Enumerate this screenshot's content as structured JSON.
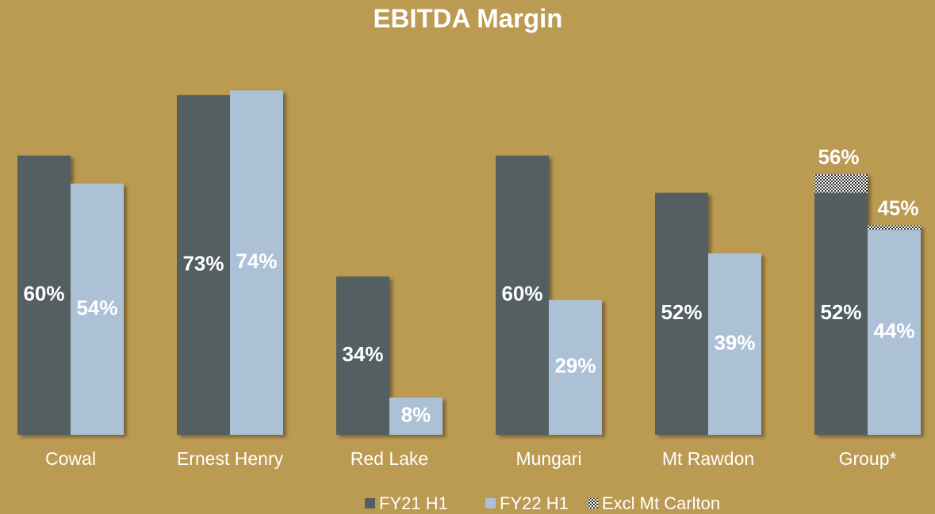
{
  "chart_data": {
    "type": "bar",
    "title": "EBITDA Margin",
    "categories": [
      "Cowal",
      "Ernest Henry",
      "Red Lake",
      "Mungari",
      "Mt Rawdon",
      "Group*"
    ],
    "ylim": [
      0,
      80
    ],
    "series": [
      {
        "name": "FY21 H1",
        "color": "#525e60",
        "values": [
          60,
          73,
          34,
          60,
          52,
          52
        ],
        "value_labels": [
          "60%",
          "73%",
          "34%",
          "60%",
          "52%",
          "52%"
        ]
      },
      {
        "name": "FY22 H1",
        "color": "#adc1d6",
        "values": [
          54,
          74,
          8,
          29,
          39,
          44
        ],
        "value_labels": [
          "54%",
          "74%",
          "8%",
          "29%",
          "39%",
          "44%"
        ]
      },
      {
        "name": "Excl Mt Carlton",
        "pattern": "checker",
        "values": [
          [
            null,
            null
          ],
          [
            null,
            null
          ],
          [
            null,
            null
          ],
          [
            null,
            null
          ],
          [
            null,
            null
          ],
          [
            56,
            45
          ]
        ],
        "value_labels": [
          [
            null,
            null
          ],
          [
            null,
            null
          ],
          [
            null,
            null
          ],
          [
            null,
            null
          ],
          [
            null,
            null
          ],
          [
            "56%",
            "45%"
          ]
        ]
      }
    ]
  }
}
